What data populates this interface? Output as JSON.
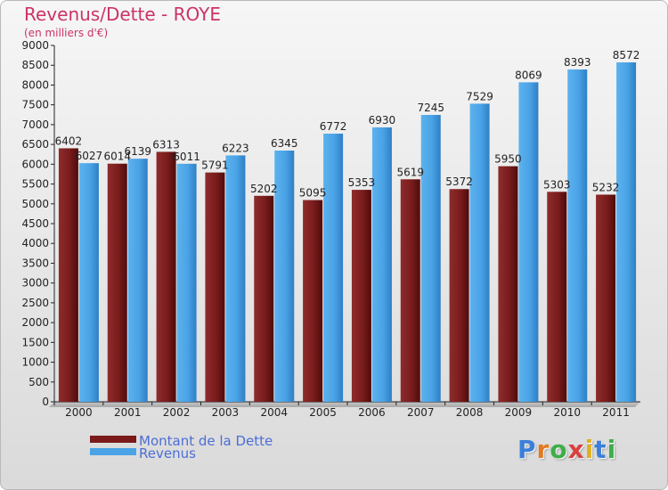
{
  "chart_data": {
    "type": "bar",
    "title": "Revenus/Dette - ROYE",
    "subtitle": "(en milliers d'€)",
    "categories": [
      "2000",
      "2001",
      "2002",
      "2003",
      "2004",
      "2005",
      "2006",
      "2007",
      "2008",
      "2009",
      "2010",
      "2011"
    ],
    "series": [
      {
        "name": "Montant de la Dette",
        "color": "#7a1a1a",
        "values": [
          6402,
          6014,
          6313,
          5791,
          5202,
          5095,
          5353,
          5619,
          5372,
          5950,
          5303,
          5232
        ]
      },
      {
        "name": "Revenus",
        "color": "#4aa3e6",
        "values": [
          6027,
          6139,
          6011,
          6223,
          6345,
          6772,
          6930,
          7245,
          7529,
          8069,
          8393,
          8572
        ]
      }
    ],
    "ylim": [
      0,
      9000
    ],
    "ytick_step": 500,
    "grid": false,
    "legend_position": "bottom-left"
  },
  "logo": {
    "text": "Proxiti",
    "letter_colors": [
      "#3b7fd9",
      "#e07b20",
      "#3fae49",
      "#d94040",
      "#e0b020",
      "#3b7fd9",
      "#3fae49"
    ]
  }
}
